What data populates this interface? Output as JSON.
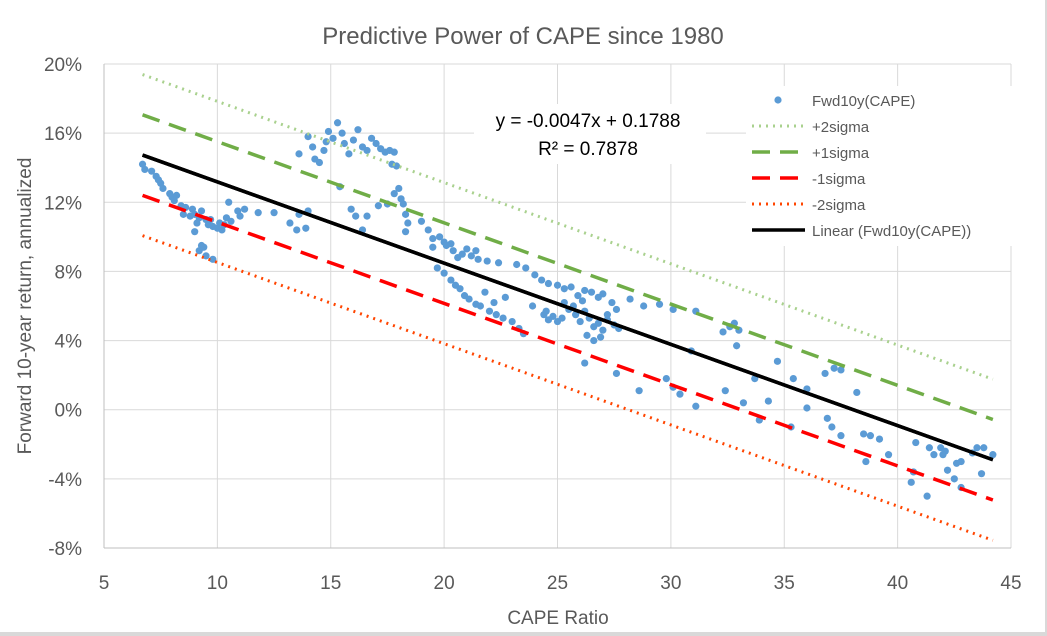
{
  "chart_data": {
    "type": "scatter",
    "title": "Predictive Power of CAPE since 1980",
    "xlabel": "CAPE Ratio",
    "ylabel": "Forward 10-year return, annualized",
    "xlim": [
      5,
      45
    ],
    "ylim": [
      -0.08,
      0.2
    ],
    "x_ticks": [
      5,
      10,
      15,
      20,
      25,
      30,
      35,
      40,
      45
    ],
    "x_tick_labels": [
      "5",
      "10",
      "15",
      "20",
      "25",
      "30",
      "35",
      "40",
      "45"
    ],
    "y_ticks": [
      -0.08,
      -0.04,
      0.0,
      0.04,
      0.08,
      0.12,
      0.16,
      0.2
    ],
    "y_tick_labels": [
      "-8%",
      "-4%",
      "0%",
      "4%",
      "8%",
      "12%",
      "16%",
      "20%"
    ],
    "grid": true,
    "legend_position": "top-right",
    "trendline": {
      "equation": "y = -0.0047x + 0.1788",
      "r_squared_label": "R² = 0.7878",
      "slope": -0.0047,
      "intercept": 0.1788,
      "x_range": [
        6.7,
        44.2
      ]
    },
    "sigma_offset": 0.0233,
    "series": [
      {
        "name": "Fwd10y(CAPE)",
        "kind": "points",
        "color": "#5b9bd5",
        "points": [
          [
            6.7,
            0.142
          ],
          [
            6.8,
            0.139
          ],
          [
            7.1,
            0.138
          ],
          [
            7.3,
            0.135
          ],
          [
            7.4,
            0.133
          ],
          [
            7.5,
            0.131
          ],
          [
            7.6,
            0.128
          ],
          [
            7.9,
            0.125
          ],
          [
            8.0,
            0.123
          ],
          [
            8.2,
            0.124
          ],
          [
            8.1,
            0.121
          ],
          [
            8.4,
            0.118
          ],
          [
            8.6,
            0.117
          ],
          [
            8.5,
            0.113
          ],
          [
            8.9,
            0.116
          ],
          [
            9.0,
            0.113
          ],
          [
            9.3,
            0.115
          ],
          [
            9.2,
            0.111
          ],
          [
            9.1,
            0.108
          ],
          [
            9.5,
            0.11
          ],
          [
            9.6,
            0.107
          ],
          [
            9.8,
            0.106
          ],
          [
            10.0,
            0.105
          ],
          [
            10.1,
            0.108
          ],
          [
            10.2,
            0.104
          ],
          [
            10.4,
            0.111
          ],
          [
            10.5,
            0.12
          ],
          [
            10.6,
            0.109
          ],
          [
            10.9,
            0.115
          ],
          [
            11.2,
            0.116
          ],
          [
            11.8,
            0.114
          ],
          [
            12.5,
            0.114
          ],
          [
            9.0,
            0.103
          ],
          [
            9.3,
            0.095
          ],
          [
            9.4,
            0.094
          ],
          [
            9.2,
            0.092
          ],
          [
            9.5,
            0.089
          ],
          [
            9.8,
            0.087
          ],
          [
            8.8,
            0.112
          ],
          [
            9.7,
            0.11
          ],
          [
            10.3,
            0.107
          ],
          [
            11.0,
            0.112
          ],
          [
            13.2,
            0.108
          ],
          [
            13.5,
            0.104
          ],
          [
            13.6,
            0.113
          ],
          [
            14.0,
            0.115
          ],
          [
            13.9,
            0.105
          ],
          [
            13.6,
            0.148
          ],
          [
            14.0,
            0.158
          ],
          [
            14.2,
            0.152
          ],
          [
            14.3,
            0.145
          ],
          [
            14.5,
            0.143
          ],
          [
            14.7,
            0.15
          ],
          [
            14.8,
            0.155
          ],
          [
            14.9,
            0.161
          ],
          [
            15.1,
            0.157
          ],
          [
            15.3,
            0.166
          ],
          [
            15.5,
            0.16
          ],
          [
            15.6,
            0.154
          ],
          [
            15.8,
            0.148
          ],
          [
            16.0,
            0.156
          ],
          [
            16.2,
            0.162
          ],
          [
            16.4,
            0.152
          ],
          [
            16.6,
            0.15
          ],
          [
            16.8,
            0.157
          ],
          [
            17.0,
            0.154
          ],
          [
            17.2,
            0.151
          ],
          [
            17.4,
            0.149
          ],
          [
            17.6,
            0.15
          ],
          [
            17.8,
            0.149
          ],
          [
            17.7,
            0.142
          ],
          [
            17.9,
            0.141
          ],
          [
            18.0,
            0.128
          ],
          [
            18.1,
            0.122
          ],
          [
            18.2,
            0.119
          ],
          [
            18.3,
            0.113
          ],
          [
            18.4,
            0.108
          ],
          [
            18.3,
            0.103
          ],
          [
            17.8,
            0.125
          ],
          [
            17.5,
            0.119
          ],
          [
            16.4,
            0.104
          ],
          [
            16.1,
            0.112
          ],
          [
            15.4,
            0.129
          ],
          [
            15.9,
            0.116
          ],
          [
            16.6,
            0.112
          ],
          [
            17.1,
            0.118
          ],
          [
            19.0,
            0.109
          ],
          [
            19.3,
            0.104
          ],
          [
            19.5,
            0.099
          ],
          [
            19.5,
            0.094
          ],
          [
            19.8,
            0.1
          ],
          [
            20.0,
            0.097
          ],
          [
            20.1,
            0.095
          ],
          [
            20.3,
            0.096
          ],
          [
            20.4,
            0.092
          ],
          [
            20.6,
            0.088
          ],
          [
            20.8,
            0.09
          ],
          [
            21.0,
            0.093
          ],
          [
            21.2,
            0.089
          ],
          [
            21.4,
            0.092
          ],
          [
            21.5,
            0.087
          ],
          [
            21.9,
            0.086
          ],
          [
            22.4,
            0.085
          ],
          [
            23.2,
            0.084
          ],
          [
            23.6,
            0.082
          ],
          [
            19.7,
            0.082
          ],
          [
            20.0,
            0.079
          ],
          [
            20.3,
            0.075
          ],
          [
            20.5,
            0.072
          ],
          [
            20.7,
            0.07
          ],
          [
            20.9,
            0.066
          ],
          [
            21.1,
            0.064
          ],
          [
            21.4,
            0.061
          ],
          [
            21.6,
            0.06
          ],
          [
            22.0,
            0.057
          ],
          [
            22.3,
            0.055
          ],
          [
            22.6,
            0.053
          ],
          [
            23.0,
            0.051
          ],
          [
            23.3,
            0.047
          ],
          [
            23.5,
            0.044
          ],
          [
            24.0,
            0.078
          ],
          [
            24.3,
            0.075
          ],
          [
            24.6,
            0.073
          ],
          [
            25.0,
            0.072
          ],
          [
            25.3,
            0.07
          ],
          [
            25.6,
            0.071
          ],
          [
            25.9,
            0.066
          ],
          [
            26.2,
            0.069
          ],
          [
            26.5,
            0.068
          ],
          [
            26.8,
            0.065
          ],
          [
            27.0,
            0.067
          ],
          [
            27.4,
            0.062
          ],
          [
            24.4,
            0.055
          ],
          [
            24.6,
            0.052
          ],
          [
            24.8,
            0.054
          ],
          [
            25.0,
            0.051
          ],
          [
            25.2,
            0.053
          ],
          [
            25.5,
            0.058
          ],
          [
            25.8,
            0.055
          ],
          [
            26.0,
            0.051
          ],
          [
            26.2,
            0.057
          ],
          [
            26.4,
            0.053
          ],
          [
            26.6,
            0.048
          ],
          [
            26.8,
            0.05
          ],
          [
            27.0,
            0.046
          ],
          [
            27.2,
            0.052
          ],
          [
            27.5,
            0.049
          ],
          [
            27.7,
            0.047
          ],
          [
            26.3,
            0.043
          ],
          [
            26.6,
            0.04
          ],
          [
            26.9,
            0.042
          ],
          [
            25.3,
            0.062
          ],
          [
            25.7,
            0.06
          ],
          [
            26.1,
            0.063
          ],
          [
            27.2,
            0.055
          ],
          [
            27.6,
            0.058
          ],
          [
            28.2,
            0.064
          ],
          [
            28.8,
            0.06
          ],
          [
            29.5,
            0.061
          ],
          [
            30.1,
            0.058
          ],
          [
            31.1,
            0.057
          ],
          [
            32.3,
            0.045
          ],
          [
            32.6,
            0.048
          ],
          [
            32.8,
            0.05
          ],
          [
            33.0,
            0.046
          ],
          [
            32.9,
            0.037
          ],
          [
            33.7,
            0.018
          ],
          [
            34.7,
            0.028
          ],
          [
            35.4,
            0.018
          ],
          [
            36.0,
            0.012
          ],
          [
            36.8,
            0.021
          ],
          [
            37.2,
            0.024
          ],
          [
            37.5,
            0.023
          ],
          [
            38.2,
            0.01
          ],
          [
            26.2,
            0.027
          ],
          [
            27.6,
            0.021
          ],
          [
            28.6,
            0.011
          ],
          [
            29.8,
            0.018
          ],
          [
            30.1,
            0.013
          ],
          [
            30.4,
            0.009
          ],
          [
            31.1,
            0.002
          ],
          [
            32.4,
            0.011
          ],
          [
            33.2,
            0.004
          ],
          [
            33.9,
            -0.006
          ],
          [
            34.3,
            0.005
          ],
          [
            35.3,
            -0.01
          ],
          [
            36.0,
            0.001
          ],
          [
            36.9,
            -0.005
          ],
          [
            37.1,
            -0.01
          ],
          [
            37.5,
            -0.015
          ],
          [
            38.5,
            -0.014
          ],
          [
            38.8,
            -0.015
          ],
          [
            39.2,
            -0.017
          ],
          [
            38.6,
            -0.03
          ],
          [
            39.6,
            -0.026
          ],
          [
            40.8,
            -0.019
          ],
          [
            41.4,
            -0.022
          ],
          [
            41.9,
            -0.022
          ],
          [
            42.1,
            -0.024
          ],
          [
            42.0,
            -0.026
          ],
          [
            42.6,
            -0.031
          ],
          [
            42.8,
            -0.03
          ],
          [
            43.3,
            -0.025
          ],
          [
            43.5,
            -0.022
          ],
          [
            43.8,
            -0.022
          ],
          [
            44.2,
            -0.026
          ],
          [
            40.7,
            -0.036
          ],
          [
            40.6,
            -0.042
          ],
          [
            41.3,
            -0.05
          ],
          [
            42.2,
            -0.035
          ],
          [
            42.5,
            -0.04
          ],
          [
            42.8,
            -0.045
          ],
          [
            43.7,
            -0.037
          ],
          [
            41.6,
            -0.026
          ],
          [
            22.2,
            0.062
          ],
          [
            21.8,
            0.068
          ],
          [
            22.7,
            0.065
          ],
          [
            23.9,
            0.06
          ],
          [
            24.5,
            0.057
          ],
          [
            30.9,
            0.034
          ]
        ]
      },
      {
        "name": "+2sigma",
        "kind": "line",
        "style": "dotted",
        "color": "#a9d18e",
        "offset_sigma": 2
      },
      {
        "name": "+1sigma",
        "kind": "line",
        "style": "dashed",
        "color": "#70ad47",
        "offset_sigma": 1
      },
      {
        "name": "-1sigma",
        "kind": "line",
        "style": "dashed",
        "color": "#ff0000",
        "offset_sigma": -1
      },
      {
        "name": "-2sigma",
        "kind": "line",
        "style": "dotted",
        "color": "#ff4500",
        "offset_sigma": -2
      },
      {
        "name": "Linear (Fwd10y(CAPE))",
        "kind": "line",
        "style": "solid",
        "color": "#000000",
        "offset_sigma": 0
      }
    ]
  }
}
